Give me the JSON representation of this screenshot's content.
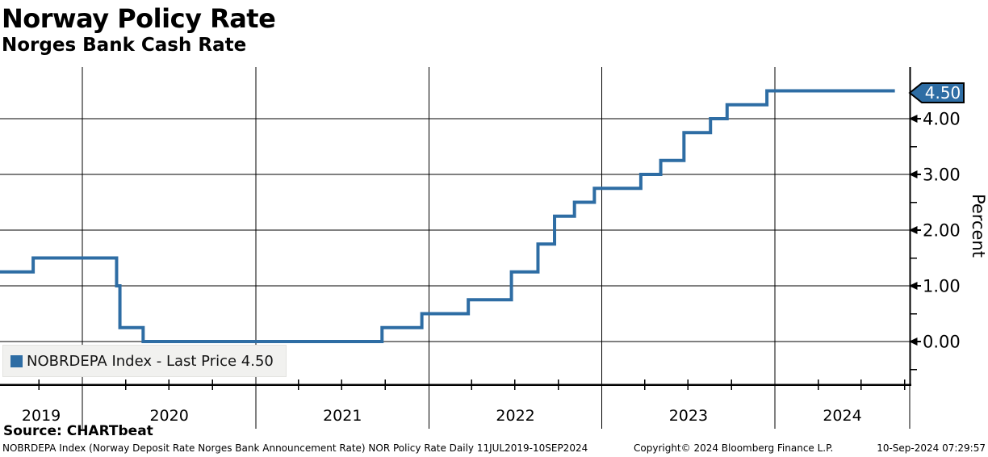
{
  "header": {
    "title": "Norway Policy Rate",
    "subtitle": "Norges Bank Cash Rate"
  },
  "legend": {
    "label": "NOBRDEPA Index - Last Price 4.50"
  },
  "source": {
    "label": "Source: CHARTbeat"
  },
  "footer": {
    "left": "NOBRDEPA Index (Norway Deposit Rate Norges Bank Announcement Rate) NOR Policy Rate  Daily 11JUL2019-10SEP2024",
    "copyright": "Copyright© 2024 Bloomberg Finance L.P.",
    "timestamp": "10-Sep-2024 07:29:57"
  },
  "chart_data": {
    "type": "line",
    "style": "step-after",
    "title": "Norway Policy Rate",
    "subtitle": "Norges Bank Cash Rate",
    "series_name": "NOBRDEPA Index",
    "ylabel": "Percent",
    "ylim": [
      -0.8,
      4.95
    ],
    "x_start": "2019-07-11",
    "x_end": "2024-09-10",
    "last_price": "4.50",
    "grid": true,
    "legend_position": "bottom-left",
    "y_ticks": [
      {
        "value": 0,
        "label": "0.00"
      },
      {
        "value": 1,
        "label": "1.00"
      },
      {
        "value": 2,
        "label": "2.00"
      },
      {
        "value": 3,
        "label": "3.00"
      },
      {
        "value": 4,
        "label": "4.00"
      }
    ],
    "y_minor_ticks": [
      -0.5,
      0.5,
      1.5,
      2.5,
      3.5
    ],
    "x_year_labels": [
      "2019",
      "2020",
      "2021",
      "2022",
      "2023",
      "2024"
    ],
    "steps": [
      {
        "date": "2019-07-11",
        "rate": 1.25
      },
      {
        "date": "2019-09-19",
        "rate": 1.5
      },
      {
        "date": "2020-03-13",
        "rate": 1.0
      },
      {
        "date": "2020-03-20",
        "rate": 0.25
      },
      {
        "date": "2020-05-08",
        "rate": 0.0
      },
      {
        "date": "2021-09-24",
        "rate": 0.25
      },
      {
        "date": "2021-12-17",
        "rate": 0.5
      },
      {
        "date": "2022-03-25",
        "rate": 0.75
      },
      {
        "date": "2022-06-24",
        "rate": 1.25
      },
      {
        "date": "2022-08-19",
        "rate": 1.75
      },
      {
        "date": "2022-09-23",
        "rate": 2.25
      },
      {
        "date": "2022-11-04",
        "rate": 2.5
      },
      {
        "date": "2022-12-16",
        "rate": 2.75
      },
      {
        "date": "2023-03-24",
        "rate": 3.0
      },
      {
        "date": "2023-05-05",
        "rate": 3.25
      },
      {
        "date": "2023-06-23",
        "rate": 3.75
      },
      {
        "date": "2023-08-18",
        "rate": 4.0
      },
      {
        "date": "2023-09-22",
        "rate": 4.25
      },
      {
        "date": "2023-12-15",
        "rate": 4.5
      },
      {
        "date": "2024-09-10",
        "rate": 4.5
      }
    ],
    "colors": {
      "line": "#2e6da4",
      "badge_fill": "#2e6da4",
      "badge_text": "#ffffff",
      "grid": "#000000",
      "axis": "#000000",
      "legend_bg": "#f1f1ef"
    }
  }
}
